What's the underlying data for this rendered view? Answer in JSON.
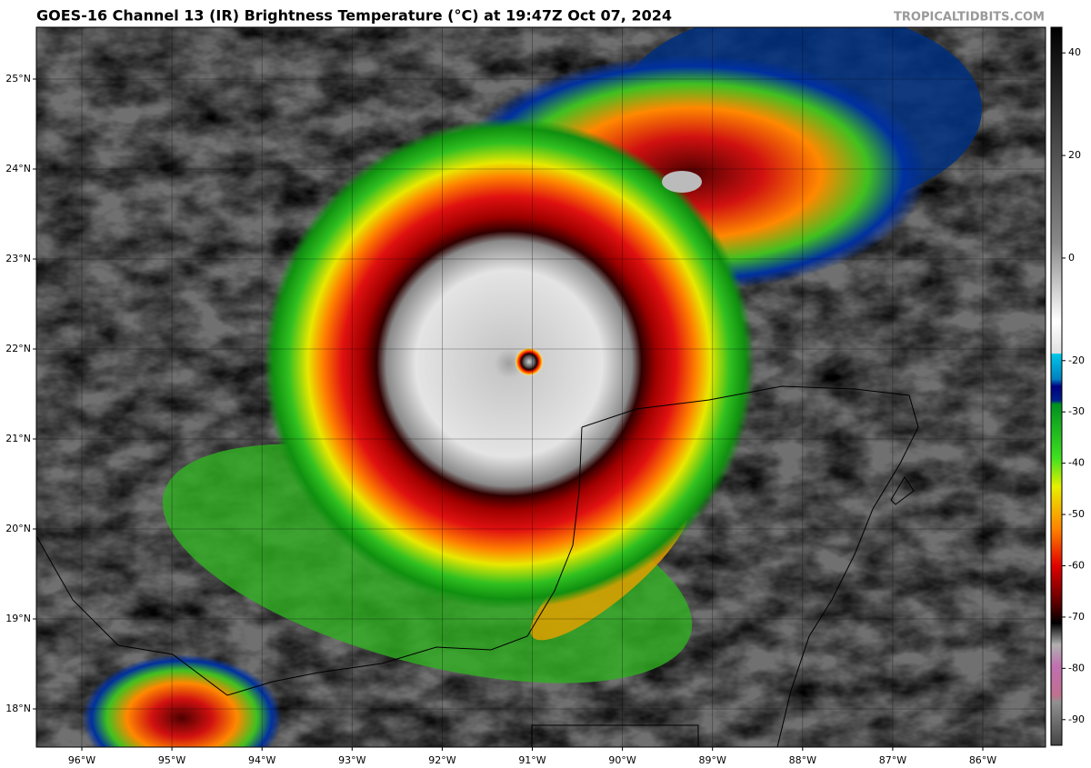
{
  "header": {
    "title": "GOES-16 Channel 13 (IR) Brightness Temperature (°C) at 19:47Z Oct 07, 2024",
    "credit": "TROPICALTIDBITS.COM"
  },
  "map": {
    "lon_labels": [
      "96°W",
      "95°W",
      "94°W",
      "93°W",
      "92°W",
      "91°W",
      "90°W",
      "89°W",
      "88°W",
      "87°W",
      "86°W"
    ],
    "lat_labels": [
      "25°N",
      "24°N",
      "23°N",
      "22°N",
      "21°N",
      "20°N",
      "19°N",
      "18°N"
    ]
  },
  "colorbar": {
    "range": [
      -95,
      45
    ],
    "ticks": [
      40,
      20,
      0,
      -20,
      -30,
      -40,
      -50,
      -60,
      -70,
      -80,
      -90
    ]
  }
}
